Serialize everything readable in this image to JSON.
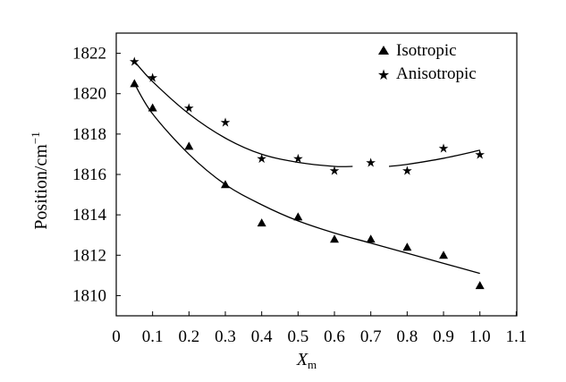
{
  "chart_data": {
    "type": "scatter",
    "xlabel_main": "X",
    "xlabel_sub": "m",
    "ylabel_main": "Position/cm",
    "ylabel_sup": "−1",
    "xlim": [
      0,
      1.1
    ],
    "ylim": [
      1809,
      1823
    ],
    "x_ticks": [
      0,
      0.1,
      0.2,
      0.3,
      0.4,
      0.5,
      0.6,
      0.7,
      0.8,
      0.9,
      1.0,
      1.1
    ],
    "x_tick_labels": [
      "0",
      "0.1",
      "0.2",
      "0.3",
      "0.4",
      "0.5",
      "0.6",
      "0.7",
      "0.8",
      "0.9",
      "1.0",
      "1.1"
    ],
    "y_ticks": [
      1810,
      1812,
      1814,
      1816,
      1818,
      1820,
      1822
    ],
    "y_tick_labels": [
      "1810",
      "1812",
      "1814",
      "1816",
      "1818",
      "1820",
      "1822"
    ],
    "grid": false,
    "legend_position": "top-right",
    "series": [
      {
        "name": "Isotropic",
        "marker": "triangle",
        "x": [
          0.05,
          0.1,
          0.2,
          0.3,
          0.4,
          0.5,
          0.6,
          0.7,
          0.8,
          0.9,
          1.0
        ],
        "y": [
          1820.5,
          1819.3,
          1817.4,
          1815.5,
          1813.6,
          1813.9,
          1812.8,
          1812.8,
          1812.4,
          1812.0,
          1810.5
        ],
        "fit_x": [
          0.05,
          0.1,
          0.2,
          0.3,
          0.4,
          0.5,
          0.6,
          0.7,
          0.8,
          0.9,
          1.0
        ],
        "fit_y": [
          1820.5,
          1819.0,
          1817.0,
          1815.5,
          1814.5,
          1813.7,
          1813.1,
          1812.6,
          1812.1,
          1811.6,
          1811.1
        ]
      },
      {
        "name": "Anisotropic",
        "marker": "star",
        "x": [
          0.05,
          0.1,
          0.2,
          0.3,
          0.4,
          0.5,
          0.6,
          0.7,
          0.8,
          0.9,
          1.0
        ],
        "y": [
          1821.6,
          1820.8,
          1819.3,
          1818.6,
          1816.8,
          1816.8,
          1816.2,
          1816.6,
          1816.2,
          1817.3,
          1817.0
        ],
        "fit_x": [
          0.05,
          0.1,
          0.2,
          0.3,
          0.4,
          0.5,
          0.6,
          0.65
        ],
        "fit_y": [
          1821.6,
          1820.6,
          1819.0,
          1817.8,
          1817.0,
          1816.6,
          1816.4,
          1816.4
        ],
        "fit2_x": [
          0.75,
          0.8,
          0.9,
          1.0
        ],
        "fit2_y": [
          1816.4,
          1816.5,
          1816.8,
          1817.2
        ]
      }
    ]
  }
}
